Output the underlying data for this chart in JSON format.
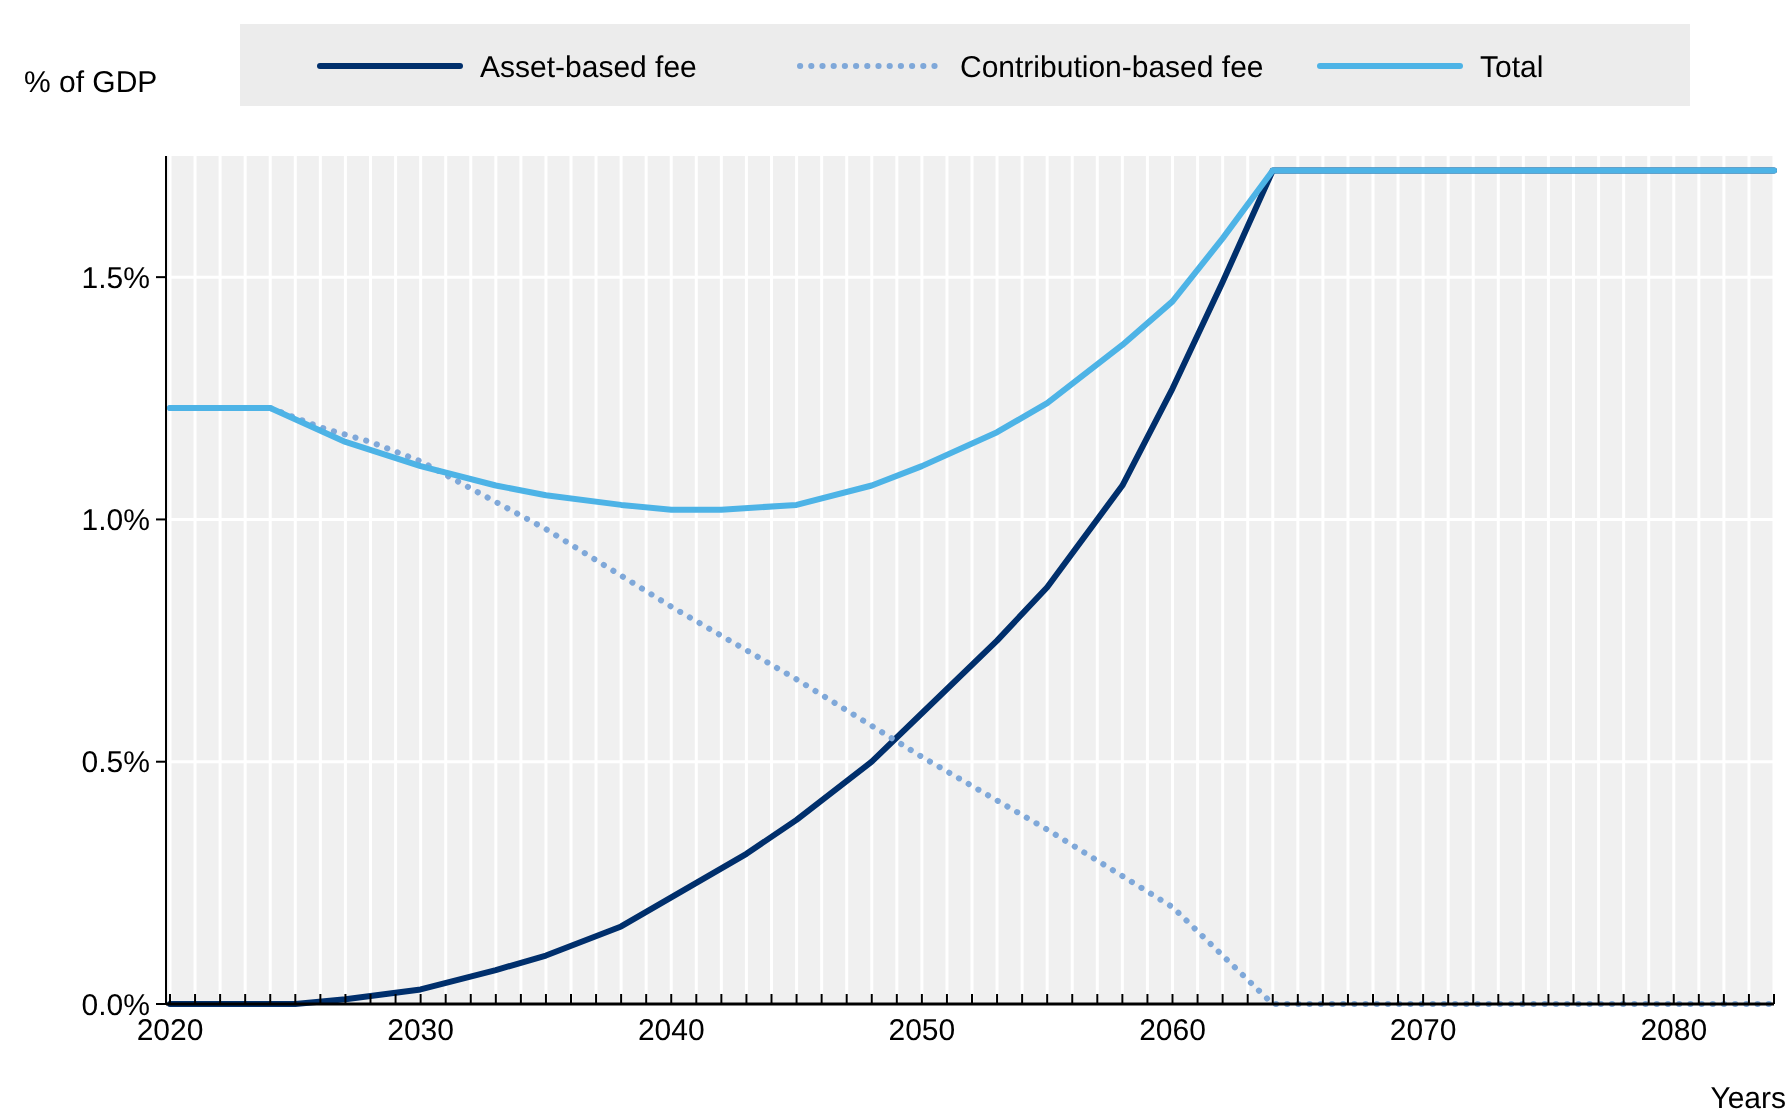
{
  "chart_data": {
    "type": "line",
    "ylabel": "% of GDP",
    "xlabel": "Years",
    "xlim": [
      2020,
      2084
    ],
    "ylim": [
      0,
      1.75
    ],
    "xticks": [
      2020,
      {
        "value": 2021,
        "label": null
      },
      {
        "value": 2022,
        "label": null
      },
      {
        "value": 2023,
        "label": null
      },
      {
        "value": 2024,
        "label": null
      },
      {
        "value": 2025,
        "label": null
      },
      {
        "value": 2026,
        "label": null
      },
      {
        "value": 2027,
        "label": null
      },
      {
        "value": 2028,
        "label": null
      },
      {
        "value": 2029,
        "label": null
      },
      2030,
      {
        "value": 2031,
        "label": null
      },
      {
        "value": 2032,
        "label": null
      },
      {
        "value": 2033,
        "label": null
      },
      {
        "value": 2034,
        "label": null
      },
      {
        "value": 2035,
        "label": null
      },
      {
        "value": 2036,
        "label": null
      },
      {
        "value": 2037,
        "label": null
      },
      {
        "value": 2038,
        "label": null
      },
      {
        "value": 2039,
        "label": null
      },
      2040,
      {
        "value": 2041,
        "label": null
      },
      {
        "value": 2042,
        "label": null
      },
      {
        "value": 2043,
        "label": null
      },
      {
        "value": 2044,
        "label": null
      },
      {
        "value": 2045,
        "label": null
      },
      {
        "value": 2046,
        "label": null
      },
      {
        "value": 2047,
        "label": null
      },
      {
        "value": 2048,
        "label": null
      },
      {
        "value": 2049,
        "label": null
      },
      2050,
      {
        "value": 2051,
        "label": null
      },
      {
        "value": 2052,
        "label": null
      },
      {
        "value": 2053,
        "label": null
      },
      {
        "value": 2054,
        "label": null
      },
      {
        "value": 2055,
        "label": null
      },
      {
        "value": 2056,
        "label": null
      },
      {
        "value": 2057,
        "label": null
      },
      {
        "value": 2058,
        "label": null
      },
      {
        "value": 2059,
        "label": null
      },
      2060,
      {
        "value": 2061,
        "label": null
      },
      {
        "value": 2062,
        "label": null
      },
      {
        "value": 2063,
        "label": null
      },
      {
        "value": 2064,
        "label": null
      },
      {
        "value": 2065,
        "label": null
      },
      {
        "value": 2066,
        "label": null
      },
      {
        "value": 2067,
        "label": null
      },
      {
        "value": 2068,
        "label": null
      },
      {
        "value": 2069,
        "label": null
      },
      2070,
      {
        "value": 2071,
        "label": null
      },
      {
        "value": 2072,
        "label": null
      },
      {
        "value": 2073,
        "label": null
      },
      {
        "value": 2074,
        "label": null
      },
      {
        "value": 2075,
        "label": null
      },
      {
        "value": 2076,
        "label": null
      },
      {
        "value": 2077,
        "label": null
      },
      {
        "value": 2078,
        "label": null
      },
      {
        "value": 2079,
        "label": null
      },
      2080,
      {
        "value": 2081,
        "label": null
      },
      {
        "value": 2082,
        "label": null
      },
      {
        "value": 2083,
        "label": null
      },
      {
        "value": 2084,
        "label": null
      }
    ],
    "yticks": [
      {
        "value": 0,
        "label": "0.0%"
      },
      {
        "value": 0.5,
        "label": "0.5%"
      },
      {
        "value": 1,
        "label": "1.0%"
      },
      {
        "value": 1.5,
        "label": "1.5%"
      }
    ],
    "grid": true,
    "legend": "top",
    "marker": "none",
    "series": [
      {
        "name": "Asset-based fee",
        "color": "#002f6c",
        "line_style": "solid",
        "x": [
          2020,
          2025,
          2027,
          2030,
          2033,
          2035,
          2038,
          2040,
          2043,
          2045,
          2048,
          2050,
          2053,
          2055,
          2058,
          2060,
          2062,
          2064,
          2084
        ],
        "values": [
          0,
          0,
          0.01,
          0.03,
          0.07,
          0.1,
          0.16,
          0.22,
          0.31,
          0.38,
          0.5,
          0.6,
          0.75,
          0.86,
          1.07,
          1.27,
          1.49,
          1.72,
          1.72
        ]
      },
      {
        "name": "Contribution-based fee",
        "color": "#7fa8d9",
        "line_style": "dotted",
        "x": [
          2020,
          2024,
          2026,
          2028,
          2030,
          2035,
          2040,
          2045,
          2050,
          2055,
          2060,
          2062,
          2064,
          2084
        ],
        "values": [
          1.23,
          1.23,
          1.19,
          1.16,
          1.12,
          0.98,
          0.82,
          0.67,
          0.51,
          0.36,
          0.2,
          0.1,
          0,
          0
        ]
      },
      {
        "name": "Total",
        "color": "#4db3e6",
        "line_style": "solid",
        "x": [
          2020,
          2024,
          2027,
          2030,
          2033,
          2035,
          2038,
          2040,
          2042,
          2045,
          2048,
          2050,
          2053,
          2055,
          2058,
          2060,
          2062,
          2064,
          2084
        ],
        "values": [
          1.23,
          1.23,
          1.16,
          1.11,
          1.07,
          1.05,
          1.03,
          1.02,
          1.02,
          1.03,
          1.07,
          1.11,
          1.18,
          1.24,
          1.36,
          1.45,
          1.58,
          1.72,
          1.72
        ]
      }
    ]
  }
}
